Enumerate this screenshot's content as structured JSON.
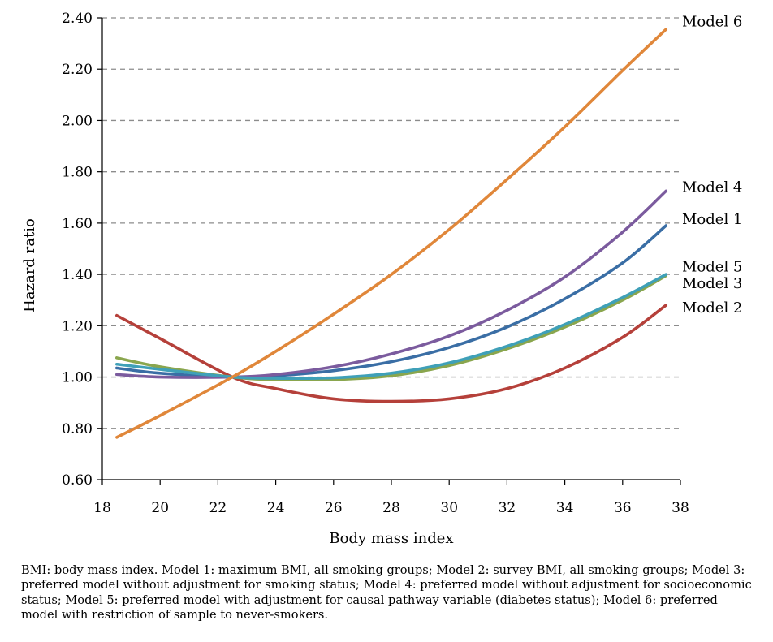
{
  "chart_data": {
    "type": "line",
    "title": "",
    "xlabel": "Body mass index",
    "ylabel": "Hazard ratio",
    "xlim": [
      18,
      38
    ],
    "ylim": [
      0.6,
      2.4
    ],
    "xticks": [
      "18",
      "20",
      "22",
      "24",
      "26",
      "28",
      "30",
      "32",
      "34",
      "36",
      "38"
    ],
    "yticks": [
      "0.60",
      "0.80",
      "1.00",
      "1.20",
      "1.40",
      "1.60",
      "1.80",
      "2.00",
      "2.20",
      "2.40"
    ],
    "grid": "horizontal dashed",
    "legend": "labels at line ends (right)",
    "series": [
      {
        "name": "Model 1",
        "color": "#3a6ea5",
        "x": [
          18.5,
          20,
          22.5,
          24,
          26,
          28,
          30,
          32,
          34,
          36,
          37.5
        ],
        "y": [
          1.035,
          1.015,
          1.0,
          1.005,
          1.025,
          1.06,
          1.115,
          1.195,
          1.305,
          1.445,
          1.59
        ]
      },
      {
        "name": "Model 2",
        "color": "#b5403a",
        "x": [
          18.5,
          20,
          22.5,
          24,
          26,
          28,
          30,
          32,
          34,
          36,
          37.5
        ],
        "y": [
          1.24,
          1.15,
          1.0,
          0.955,
          0.915,
          0.905,
          0.915,
          0.955,
          1.035,
          1.155,
          1.28
        ]
      },
      {
        "name": "Model 3",
        "color": "#8aa64e",
        "x": [
          18.5,
          20,
          22.5,
          24,
          26,
          28,
          30,
          32,
          34,
          36,
          37.5
        ],
        "y": [
          1.075,
          1.04,
          1.0,
          0.99,
          0.99,
          1.005,
          1.045,
          1.11,
          1.195,
          1.3,
          1.395
        ]
      },
      {
        "name": "Model 4",
        "color": "#7b5b9e",
        "x": [
          18.5,
          20,
          22.5,
          24,
          26,
          28,
          30,
          32,
          34,
          36,
          37.5
        ],
        "y": [
          1.01,
          1.0,
          1.0,
          1.01,
          1.04,
          1.09,
          1.16,
          1.26,
          1.39,
          1.565,
          1.725
        ]
      },
      {
        "name": "Model 5",
        "color": "#3fa0b8",
        "x": [
          18.5,
          20,
          22.5,
          24,
          26,
          28,
          30,
          32,
          34,
          36,
          37.5
        ],
        "y": [
          1.05,
          1.03,
          1.0,
          0.995,
          0.997,
          1.015,
          1.055,
          1.12,
          1.205,
          1.31,
          1.4
        ]
      },
      {
        "name": "Model 6",
        "color": "#e0873a",
        "x": [
          18.5,
          20,
          22.5,
          24,
          26,
          28,
          30,
          32,
          34,
          36,
          37.5
        ],
        "y": [
          0.765,
          0.85,
          1.0,
          1.1,
          1.245,
          1.4,
          1.575,
          1.77,
          1.975,
          2.195,
          2.355
        ]
      }
    ]
  },
  "caption": "BMI: body mass index. Model 1: maximum BMI, all smoking groups; Model 2: survey BMI, all smoking groups; Model 3: preferred model without adjustment for smoking status; Model 4: preferred model without adjustment for socioeconomic status; Model 5: preferred model with adjustment for causal pathway variable (diabetes status); Model 6: preferred model with restriction of sample to never-smokers."
}
